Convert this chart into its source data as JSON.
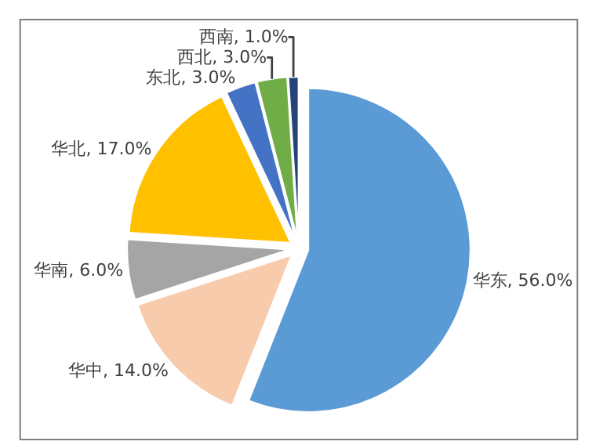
{
  "chart_data": {
    "type": "pie",
    "categories": [
      "华东",
      "华中",
      "华南",
      "华北",
      "东北",
      "西北",
      "西南"
    ],
    "values": [
      56.0,
      14.0,
      6.0,
      17.0,
      3.0,
      3.0,
      1.0
    ],
    "value_labels": [
      "56.0%",
      "14.0%",
      "6.0%",
      "17.0%",
      "3.0%",
      "3.0%",
      "1.0%"
    ],
    "colors": [
      "#5b9bd5",
      "#f8cbad",
      "#a5a5a5",
      "#ffc000",
      "#4472c4",
      "#70ad47",
      "#264478"
    ],
    "legend": false
  }
}
